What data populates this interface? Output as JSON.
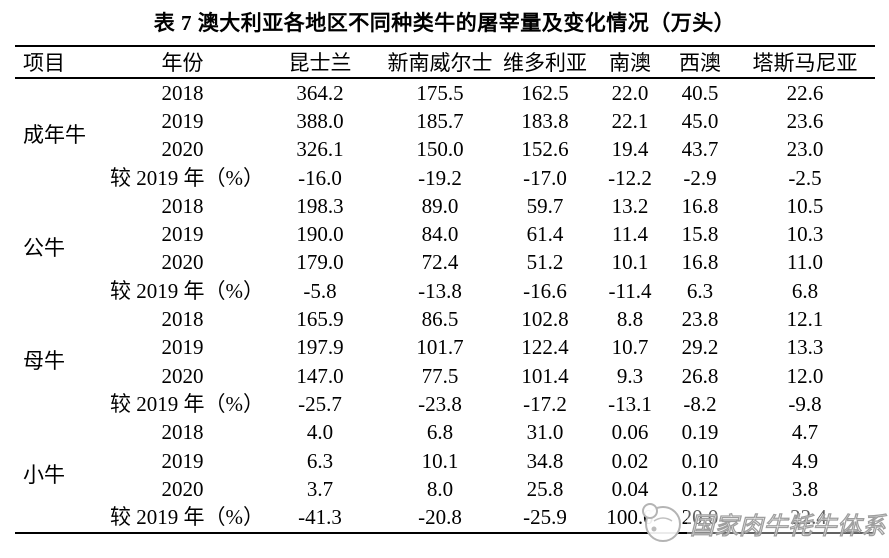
{
  "title": "表 7 澳大利亚各地区不同种类牛的屠宰量及变化情况（万头）",
  "table": {
    "headers": [
      "项目",
      "年份",
      "昆士兰",
      "新南威尔士",
      "维多利亚",
      "南澳",
      "西澳",
      "塔斯马尼亚"
    ],
    "groups": [
      {
        "item": "成年牛",
        "rows": [
          {
            "label": "2018",
            "values": [
              "364.2",
              "175.5",
              "162.5",
              "22.0",
              "40.5",
              "22.6"
            ]
          },
          {
            "label": "2019",
            "values": [
              "388.0",
              "185.7",
              "183.8",
              "22.1",
              "45.0",
              "23.6"
            ]
          },
          {
            "label": "2020",
            "values": [
              "326.1",
              "150.0",
              "152.6",
              "19.4",
              "43.7",
              "23.0"
            ]
          },
          {
            "label": "较 2019 年（%）",
            "values": [
              "-16.0",
              "-19.2",
              "-17.0",
              "-12.2",
              "-2.9",
              "-2.5"
            ]
          }
        ]
      },
      {
        "item": "公牛",
        "rows": [
          {
            "label": "2018",
            "values": [
              "198.3",
              "89.0",
              "59.7",
              "13.2",
              "16.8",
              "10.5"
            ]
          },
          {
            "label": "2019",
            "values": [
              "190.0",
              "84.0",
              "61.4",
              "11.4",
              "15.8",
              "10.3"
            ]
          },
          {
            "label": "2020",
            "values": [
              "179.0",
              "72.4",
              "51.2",
              "10.1",
              "16.8",
              "11.0"
            ]
          },
          {
            "label": "较 2019 年（%）",
            "values": [
              "-5.8",
              "-13.8",
              "-16.6",
              "-11.4",
              "6.3",
              "6.8"
            ]
          }
        ]
      },
      {
        "item": "母牛",
        "rows": [
          {
            "label": "2018",
            "values": [
              "165.9",
              "86.5",
              "102.8",
              "8.8",
              "23.8",
              "12.1"
            ]
          },
          {
            "label": "2019",
            "values": [
              "197.9",
              "101.7",
              "122.4",
              "10.7",
              "29.2",
              "13.3"
            ]
          },
          {
            "label": "2020",
            "values": [
              "147.0",
              "77.5",
              "101.4",
              "9.3",
              "26.8",
              "12.0"
            ]
          },
          {
            "label": "较 2019 年（%）",
            "values": [
              "-25.7",
              "-23.8",
              "-17.2",
              "-13.1",
              "-8.2",
              "-9.8"
            ]
          }
        ]
      },
      {
        "item": "小牛",
        "rows": [
          {
            "label": "2018",
            "values": [
              "4.0",
              "6.8",
              "31.0",
              "0.06",
              "0.19",
              "4.7"
            ]
          },
          {
            "label": "2019",
            "values": [
              "6.3",
              "10.1",
              "34.8",
              "0.02",
              "0.10",
              "4.9"
            ]
          },
          {
            "label": "2020",
            "values": [
              "3.7",
              "8.0",
              "25.8",
              "0.04",
              "0.12",
              "3.8"
            ]
          },
          {
            "label": "较 2019 年（%）",
            "values": [
              "-41.3",
              "-20.8",
              "-25.9",
              "100.0",
              "20.0",
              "-22.4"
            ]
          }
        ]
      }
    ]
  },
  "watermark": {
    "text": "国家肉牛牦牛体系",
    "logo": "cattle-emblem",
    "color": "#9e9e9e"
  }
}
